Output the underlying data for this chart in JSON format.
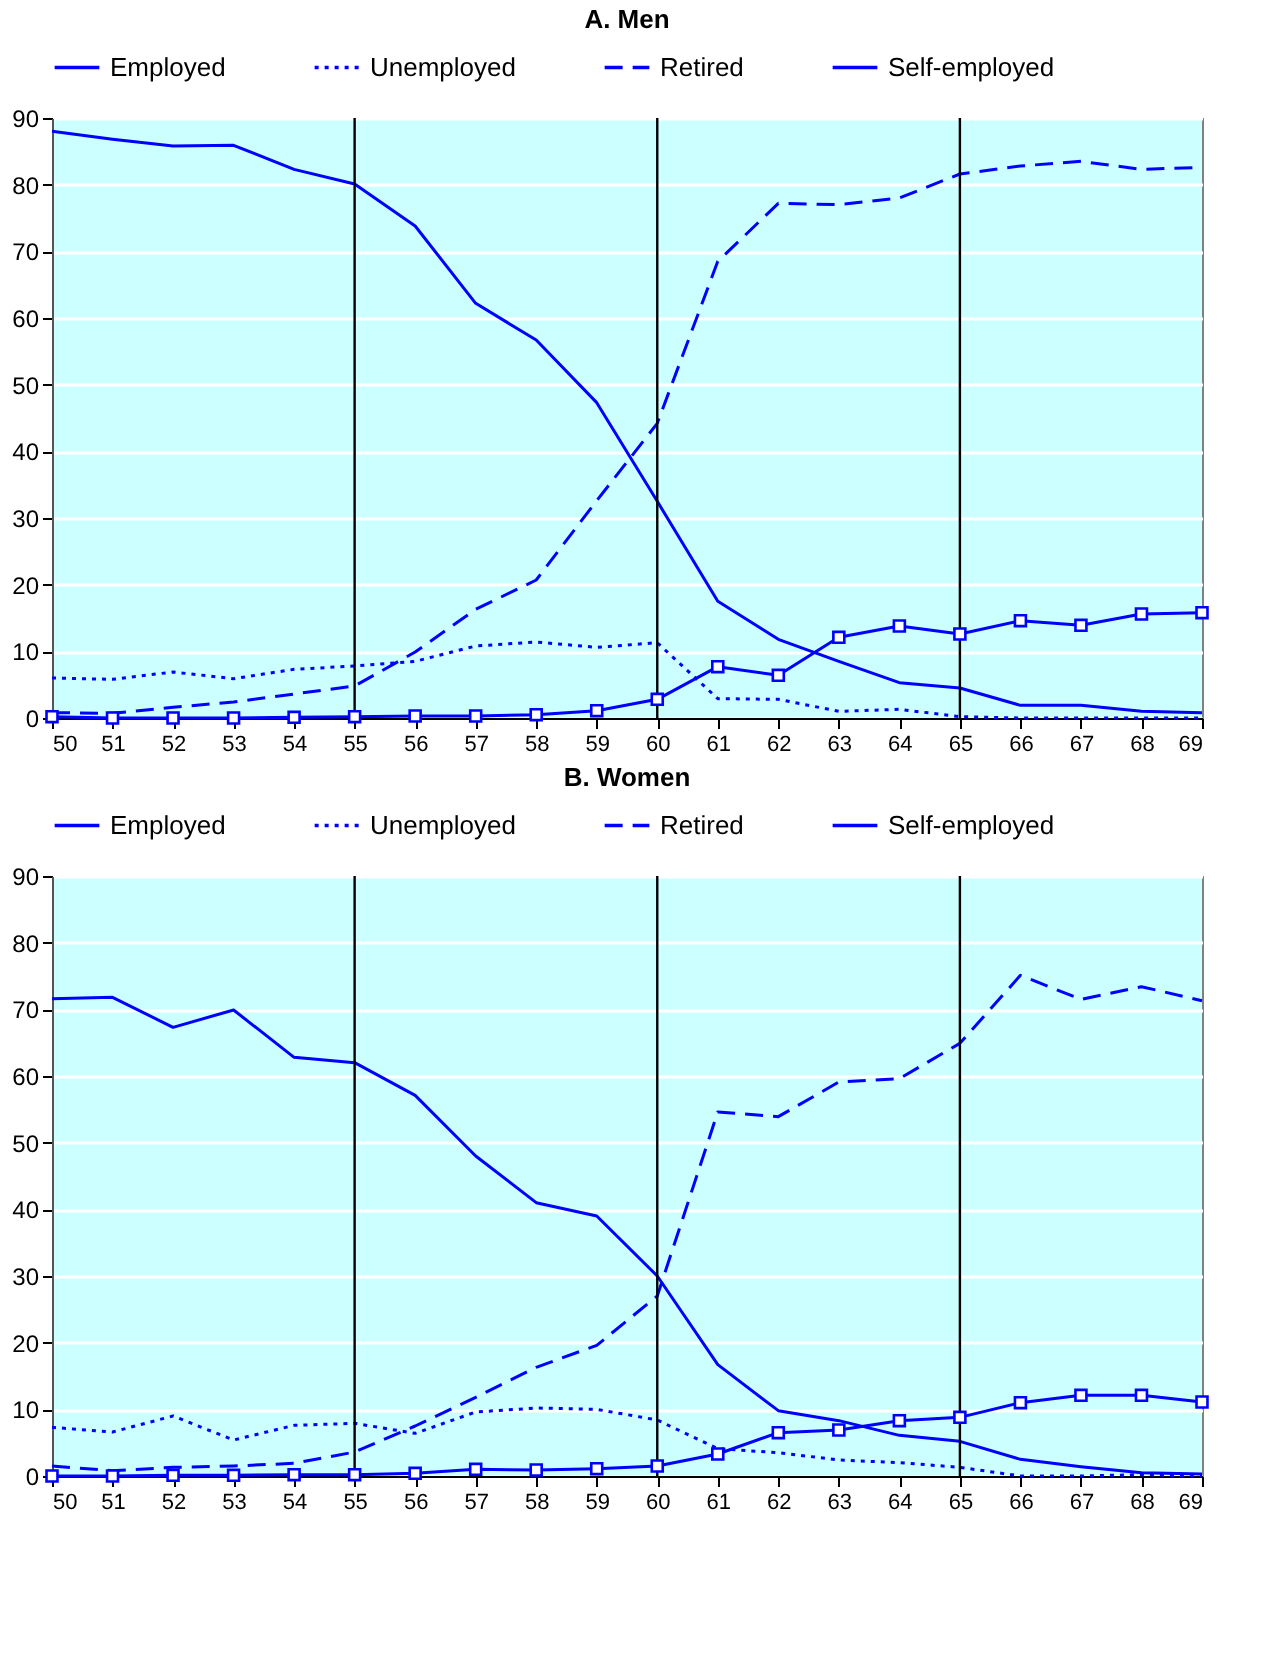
{
  "chart_data": [
    {
      "type": "line",
      "title": "A. Men",
      "x": [
        50,
        51,
        52,
        53,
        54,
        55,
        56,
        57,
        58,
        59,
        60,
        61,
        62,
        63,
        64,
        65,
        66,
        67,
        68,
        69
      ],
      "xlim": [
        50,
        69
      ],
      "xticks": [
        50,
        51,
        52,
        53,
        54,
        55,
        56,
        57,
        58,
        59,
        60,
        61,
        62,
        63,
        64,
        65,
        66,
        67,
        68,
        69
      ],
      "ylim": [
        0,
        90
      ],
      "yticks": [
        0,
        10,
        20,
        30,
        40,
        50,
        60,
        70,
        80,
        90
      ],
      "grid": "y",
      "legend": "top",
      "ref_lines": [
        {
          "axis": "x",
          "value": 55,
          "color": "#000000"
        },
        {
          "axis": "x",
          "value": 60,
          "color": "#000000"
        },
        {
          "axis": "x",
          "value": 65,
          "color": "#000000"
        }
      ],
      "series": [
        {
          "name": "Employed",
          "color": "#0000ff",
          "line_style": "solid",
          "marker": "none",
          "values": [
            88,
            86.8,
            85.8,
            85.9,
            82.3,
            80.1,
            73.8,
            62.2,
            56.7,
            47.3,
            32.5,
            17.5,
            11.8,
            8.5,
            5.3,
            4.5,
            1.9,
            1.9,
            1.0,
            0.8
          ]
        },
        {
          "name": "Unemployed",
          "color": "#0000ff",
          "line_style": "dotted",
          "marker": "none",
          "values": [
            6.0,
            5.8,
            6.9,
            5.9,
            7.3,
            7.8,
            8.5,
            10.8,
            11.4,
            10.6,
            11.3,
            2.9,
            2.8,
            1.0,
            1.3,
            0.2,
            0,
            0,
            0,
            0
          ]
        },
        {
          "name": "Retired",
          "color": "#0000ff",
          "line_style": "dashed",
          "marker": "none",
          "values": [
            0.8,
            0.7,
            1.6,
            2.4,
            3.6,
            4.8,
            9.9,
            16.3,
            20.7,
            32.6,
            44.2,
            68.5,
            77.2,
            77.0,
            78.0,
            81.6,
            82.8,
            83.5,
            82.3,
            82.6
          ]
        },
        {
          "name": "Self-employed",
          "color": "#0000ff",
          "line_style": "solid",
          "marker": "square",
          "values": [
            0.2,
            0,
            0,
            0,
            0.1,
            0.2,
            0.3,
            0.3,
            0.5,
            1.1,
            2.8,
            7.7,
            6.4,
            12.1,
            13.8,
            12.6,
            14.6,
            13.9,
            15.6,
            15.8
          ]
        }
      ]
    },
    {
      "type": "line",
      "title": "B. Women",
      "x": [
        50,
        51,
        52,
        53,
        54,
        55,
        56,
        57,
        58,
        59,
        60,
        61,
        62,
        63,
        64,
        65,
        66,
        67,
        68,
        69
      ],
      "xlim": [
        50,
        69
      ],
      "xticks": [
        50,
        51,
        52,
        53,
        54,
        55,
        56,
        57,
        58,
        59,
        60,
        61,
        62,
        63,
        64,
        65,
        66,
        67,
        68,
        69
      ],
      "ylim": [
        0,
        90
      ],
      "yticks": [
        0,
        10,
        20,
        30,
        40,
        50,
        60,
        70,
        80,
        90
      ],
      "grid": "y",
      "legend": "top",
      "ref_lines": [
        {
          "axis": "x",
          "value": 55,
          "color": "#000000"
        },
        {
          "axis": "x",
          "value": 60,
          "color": "#000000"
        },
        {
          "axis": "x",
          "value": 65,
          "color": "#000000"
        }
      ],
      "series": [
        {
          "name": "Employed",
          "color": "#0000ff",
          "line_style": "solid",
          "marker": "none",
          "values": [
            71.6,
            71.8,
            67.3,
            69.9,
            62.8,
            62.0,
            57.1,
            48.0,
            41.0,
            39.0,
            30.0,
            16.7,
            9.8,
            8.3,
            6.1,
            5.2,
            2.5,
            1.4,
            0.5,
            0.3
          ]
        },
        {
          "name": "Unemployed",
          "color": "#0000ff",
          "line_style": "dotted",
          "marker": "none",
          "values": [
            7.3,
            6.6,
            9.0,
            5.4,
            7.6,
            7.9,
            6.4,
            9.6,
            10.2,
            10.0,
            8.4,
            4.1,
            3.5,
            2.4,
            2.0,
            1.3,
            0,
            0,
            0.2,
            0
          ]
        },
        {
          "name": "Retired",
          "color": "#0000ff",
          "line_style": "dashed",
          "marker": "none",
          "values": [
            1.5,
            0.8,
            1.3,
            1.5,
            1.9,
            3.6,
            7.5,
            11.8,
            16.3,
            19.6,
            27.0,
            54.6,
            53.9,
            59.1,
            59.6,
            64.9,
            75.1,
            71.5,
            73.4,
            71.3
          ]
        },
        {
          "name": "Self-employed",
          "color": "#0000ff",
          "line_style": "solid",
          "marker": "square",
          "values": [
            0,
            0,
            0.1,
            0.1,
            0.2,
            0.2,
            0.4,
            1.0,
            0.9,
            1.1,
            1.5,
            3.3,
            6.5,
            6.9,
            8.3,
            8.8,
            11.0,
            12.1,
            12.1,
            11.1
          ]
        }
      ]
    }
  ]
}
